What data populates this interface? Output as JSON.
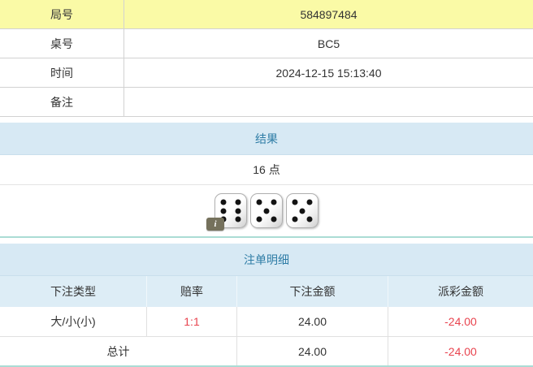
{
  "info_table": {
    "rows": [
      {
        "label": "局号",
        "value": "584897484",
        "highlight": true
      },
      {
        "label": "桌号",
        "value": "BC5",
        "highlight": false
      },
      {
        "label": "时间",
        "value": "2024-12-15 15:13:40",
        "highlight": false
      },
      {
        "label": "备注",
        "value": "",
        "highlight": false
      }
    ]
  },
  "result_section": {
    "title": "结果",
    "points_text": "16 点",
    "dice": [
      6,
      5,
      5
    ],
    "info_badge": "i"
  },
  "bets_section": {
    "title": "注单明细",
    "columns": [
      "下注类型",
      "赔率",
      "下注金额",
      "派彩金额"
    ],
    "rows": [
      {
        "bet_type": "大/小(小)",
        "odds": "1:1",
        "bet_amount": "24.00",
        "payout": "-24.00"
      }
    ],
    "total_label": "总计",
    "total_bet_amount": "24.00",
    "total_payout": "-24.00"
  },
  "colors": {
    "yellow_highlight": "#fafaa6",
    "section_header_bg": "#d7e9f4",
    "section_header_text": "#2f7da6",
    "column_header_bg": "#ddedf6",
    "teal_border": "#abdcd5",
    "negative_red": "#e8444f",
    "text": "#333333"
  }
}
